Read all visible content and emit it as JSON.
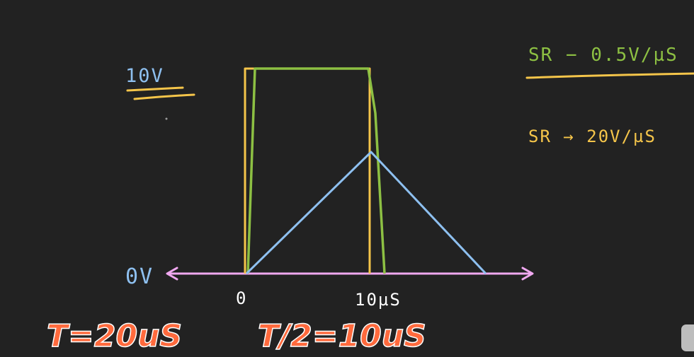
{
  "labels": {
    "v_high": "10V",
    "v_low": "0V",
    "t_zero": "0",
    "t_ten": "10µS",
    "sr_slow": "SR − 0.5V/µS",
    "sr_fast": "SR → 20V/µS",
    "period": "T=20uS",
    "half_period": "T/2=10uS"
  },
  "colors": {
    "background": "#222222",
    "axis": "#f0a8f0",
    "input_square": "#f5c54a",
    "output_slow_triangle": "#8ec0f0",
    "output_fast_green": "#8dc043",
    "label_blue": "#8ec0f0",
    "label_green": "#8dc043",
    "label_orange": "#f5c54a",
    "title_fill": "#ff6a3d",
    "title_stroke": "#ffffff"
  }
}
